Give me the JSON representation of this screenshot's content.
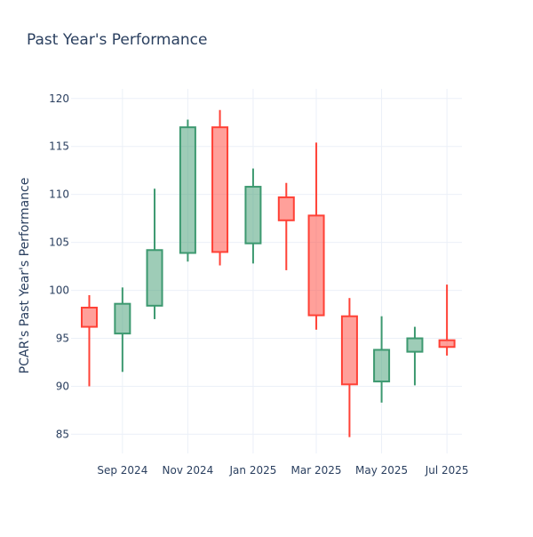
{
  "chart_data": {
    "type": "candlestick",
    "title": "Past Year's Performance",
    "xlabel": "",
    "ylabel": "PCAR's Past Year's Performance",
    "ylim": [
      83,
      121
    ],
    "yticks": [
      85,
      90,
      95,
      100,
      105,
      110,
      115,
      120
    ],
    "xticks": [
      {
        "label": "Sep 2024",
        "date": "2024-09-01"
      },
      {
        "label": "Nov 2024",
        "date": "2024-11-01"
      },
      {
        "label": "Jan 2025",
        "date": "2025-01-01"
      },
      {
        "label": "Mar 2025",
        "date": "2025-03-01"
      },
      {
        "label": "May 2025",
        "date": "2025-05-01"
      },
      {
        "label": "Jul 2025",
        "date": "2025-07-01"
      }
    ],
    "xlim": [
      "2024-07-15",
      "2025-07-15"
    ],
    "grid": true,
    "colors": {
      "increasing": "#3D9970",
      "decreasing": "#FF4136"
    },
    "candles": [
      {
        "date": "2024-08-01",
        "open": 98.2,
        "high": 99.5,
        "low": 90.0,
        "close": 96.2
      },
      {
        "date": "2024-09-01",
        "open": 95.5,
        "high": 100.3,
        "low": 91.5,
        "close": 98.6
      },
      {
        "date": "2024-10-01",
        "open": 98.4,
        "high": 110.6,
        "low": 97.0,
        "close": 104.2
      },
      {
        "date": "2024-11-01",
        "open": 103.9,
        "high": 117.8,
        "low": 103.0,
        "close": 117.0
      },
      {
        "date": "2024-12-01",
        "open": 117.0,
        "high": 118.8,
        "low": 102.6,
        "close": 104.0
      },
      {
        "date": "2025-01-01",
        "open": 104.9,
        "high": 112.7,
        "low": 102.8,
        "close": 110.8
      },
      {
        "date": "2025-02-01",
        "open": 109.7,
        "high": 111.2,
        "low": 102.1,
        "close": 107.3
      },
      {
        "date": "2025-03-01",
        "open": 107.8,
        "high": 115.4,
        "low": 95.9,
        "close": 97.4
      },
      {
        "date": "2025-04-01",
        "open": 97.3,
        "high": 99.2,
        "low": 84.7,
        "close": 90.2
      },
      {
        "date": "2025-05-01",
        "open": 90.5,
        "high": 97.3,
        "low": 88.3,
        "close": 93.8
      },
      {
        "date": "2025-06-01",
        "open": 93.6,
        "high": 96.2,
        "low": 90.1,
        "close": 95.0
      },
      {
        "date": "2025-07-01",
        "open": 94.8,
        "high": 100.6,
        "low": 93.2,
        "close": 94.1
      }
    ]
  }
}
